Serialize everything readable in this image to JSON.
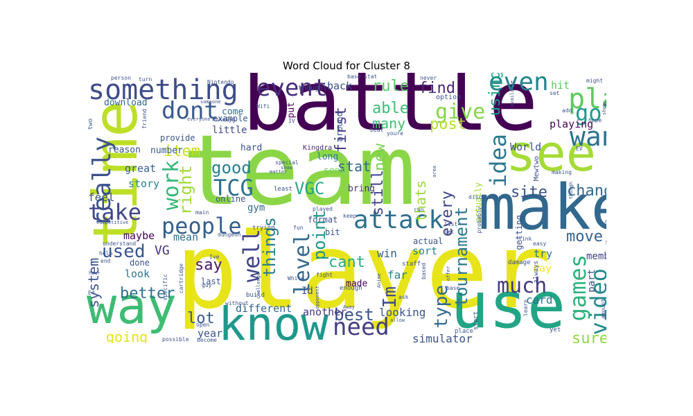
{
  "title": "Word Cloud for Cluster 8",
  "chart_data": {
    "type": "wordcloud",
    "title": "Word Cloud for Cluster 8",
    "words": [
      {
        "text": "player",
        "weight": 1.0,
        "color": "#e7e419"
      },
      {
        "text": "team",
        "weight": 0.95,
        "color": "#8bd646"
      },
      {
        "text": "battle",
        "weight": 0.92,
        "color": "#440154"
      },
      {
        "text": "time",
        "weight": 0.62,
        "color": "#bddf26"
      },
      {
        "text": "make",
        "weight": 0.6,
        "color": "#31688e"
      },
      {
        "text": "use",
        "weight": 0.58,
        "color": "#21a585"
      },
      {
        "text": "know",
        "weight": 0.5,
        "color": "#1f988b"
      },
      {
        "text": "way",
        "weight": 0.48,
        "color": "#3ebc73"
      },
      {
        "text": "see",
        "weight": 0.46,
        "color": "#a5db36"
      },
      {
        "text": "attack",
        "weight": 0.3,
        "color": "#2e6e8e"
      },
      {
        "text": "something",
        "weight": 0.3,
        "color": "#3e4c8a"
      },
      {
        "text": "play",
        "weight": 0.28,
        "color": "#5ec962"
      },
      {
        "text": "want",
        "weight": 0.26,
        "color": "#2c728e"
      },
      {
        "text": "people",
        "weight": 0.24,
        "color": "#355f8d"
      },
      {
        "text": "event",
        "weight": 0.22,
        "color": "#472d7b"
      },
      {
        "text": "even",
        "weight": 0.22,
        "color": "#25858e"
      },
      {
        "text": "need",
        "weight": 0.21,
        "color": "#433e85"
      },
      {
        "text": "dont",
        "weight": 0.21,
        "color": "#38588c"
      },
      {
        "text": "really",
        "weight": 0.2,
        "color": "#3b528b"
      },
      {
        "text": "take",
        "weight": 0.2,
        "color": "#404688"
      },
      {
        "text": "idea",
        "weight": 0.2,
        "color": "#2a788e"
      },
      {
        "text": "well",
        "weight": 0.2,
        "color": "#414487"
      },
      {
        "text": "level",
        "weight": 0.2,
        "color": "#31688e"
      },
      {
        "text": "games",
        "weight": 0.19,
        "color": "#2db27d"
      },
      {
        "text": "video",
        "weight": 0.19,
        "color": "#23898e"
      },
      {
        "text": "much",
        "weight": 0.18,
        "color": "#453781"
      },
      {
        "text": "give",
        "weight": 0.18,
        "color": "#86d549"
      },
      {
        "text": "TCG",
        "weight": 0.18,
        "color": "#2c728e"
      },
      {
        "text": "go",
        "weight": 0.18,
        "color": "#1e9b8a"
      },
      {
        "text": "work",
        "weight": 0.17,
        "color": "#35b779"
      },
      {
        "text": "Im",
        "weight": 0.17,
        "color": "#3e4a89"
      },
      {
        "text": "used",
        "weight": 0.16,
        "color": "#39568c"
      },
      {
        "text": "good",
        "weight": 0.15,
        "color": "#277f8e"
      },
      {
        "text": "VGC",
        "weight": 0.15,
        "color": "#22a884"
      },
      {
        "text": "best",
        "weight": 0.14,
        "color": "#3b528b"
      },
      {
        "text": "rule",
        "weight": 0.13,
        "color": "#58c765"
      },
      {
        "text": "find",
        "weight": 0.13,
        "color": "#482576"
      },
      {
        "text": "site",
        "weight": 0.13,
        "color": "#3b528b"
      },
      {
        "text": "right",
        "weight": 0.13,
        "color": "#a0da39"
      },
      {
        "text": "type",
        "weight": 0.13,
        "color": "#31688e"
      },
      {
        "text": "things",
        "weight": 0.13,
        "color": "#287d8e"
      },
      {
        "text": "point",
        "weight": 0.13,
        "color": "#1f968b"
      },
      {
        "text": "tournament",
        "weight": 0.13,
        "color": "#2a778e"
      },
      {
        "text": "thats",
        "weight": 0.12,
        "color": "#9dd93b"
      },
      {
        "text": "new",
        "weight": 0.12,
        "color": "#7ad151"
      },
      {
        "text": "still",
        "weight": 0.12,
        "color": "#404588"
      },
      {
        "text": "first",
        "weight": 0.12,
        "color": "#443983"
      },
      {
        "text": "using",
        "weight": 0.12,
        "color": "#1f9e89"
      },
      {
        "text": "move",
        "weight": 0.12,
        "color": "#34618d"
      },
      {
        "text": "change",
        "weight": 0.12,
        "color": "#31688e"
      },
      {
        "text": "able",
        "weight": 0.12,
        "color": "#3dbc74"
      },
      {
        "text": "post",
        "weight": 0.12,
        "color": "#b2dd2d"
      },
      {
        "text": "many",
        "weight": 0.12,
        "color": "#44bf70"
      },
      {
        "text": "stat",
        "weight": 0.12,
        "color": "#33638d"
      },
      {
        "text": "every",
        "weight": 0.12,
        "color": "#404588"
      },
      {
        "text": "system",
        "weight": 0.11,
        "color": "#3a548c"
      },
      {
        "text": "better",
        "weight": 0.11,
        "color": "#2e6f8e"
      },
      {
        "text": "item",
        "weight": 0.11,
        "color": "#c8e020"
      },
      {
        "text": "cant",
        "weight": 0.11,
        "color": "#27ad81"
      },
      {
        "text": "say",
        "weight": 0.11,
        "color": "#481769"
      },
      {
        "text": "lot",
        "weight": 0.11,
        "color": "#38588c"
      },
      {
        "text": "going",
        "weight": 0.1,
        "color": "#e2e418"
      },
      {
        "text": "sure",
        "weight": 0.1,
        "color": "#8fd744"
      },
      {
        "text": "simulator",
        "weight": 0.09,
        "color": "#3b528b"
      },
      {
        "text": "looking",
        "weight": 0.09,
        "color": "#3b528b"
      },
      {
        "text": "card",
        "weight": 0.09,
        "color": "#2b748e"
      },
      {
        "text": "back",
        "weight": 0.08,
        "color": "#3b528b"
      },
      {
        "text": "VG",
        "weight": 0.08,
        "color": "#46307e"
      },
      {
        "text": "maybe",
        "weight": 0.08,
        "color": "#440154"
      },
      {
        "text": "look",
        "weight": 0.08,
        "color": "#2d708e"
      },
      {
        "text": "great",
        "weight": 0.08,
        "color": "#355f8d"
      },
      {
        "text": "story",
        "weight": 0.08,
        "color": "#25848e"
      },
      {
        "text": "feel",
        "weight": 0.08,
        "color": "#3b528b"
      },
      {
        "text": "mean",
        "weight": 0.08,
        "color": "#2e6e8e"
      },
      {
        "text": "year",
        "weight": 0.08,
        "color": "#3b528b"
      },
      {
        "text": "different",
        "weight": 0.08,
        "color": "#32648e"
      },
      {
        "text": "another",
        "weight": 0.08,
        "color": "#443983"
      },
      {
        "text": "win",
        "weight": 0.08,
        "color": "#32648e"
      },
      {
        "text": "far",
        "weight": 0.08,
        "color": "#27808e"
      },
      {
        "text": "made",
        "weight": 0.08,
        "color": "#440154"
      },
      {
        "text": "sort",
        "weight": 0.08,
        "color": "#26828e"
      },
      {
        "text": "hard",
        "weight": 0.08,
        "color": "#3b528b"
      },
      {
        "text": "long",
        "weight": 0.08,
        "color": "#287c8e"
      },
      {
        "text": "seem",
        "weight": 0.08,
        "color": "#70cf57"
      },
      {
        "text": "bring",
        "weight": 0.08,
        "color": "#46327e"
      },
      {
        "text": "little",
        "weight": 0.08,
        "color": "#3f4788"
      },
      {
        "text": "gym",
        "weight": 0.08,
        "color": "#2f6b8e"
      },
      {
        "text": "try",
        "weight": 0.08,
        "color": "#2e6f8e"
      },
      {
        "text": "day",
        "weight": 0.08,
        "color": "#fde725"
      },
      {
        "text": "member",
        "weight": 0.08,
        "color": "#414487"
      },
      {
        "text": "part",
        "weight": 0.08,
        "color": "#3b528b"
      },
      {
        "text": "playing",
        "weight": 0.08,
        "color": "#440154"
      },
      {
        "text": "World",
        "weight": 0.08,
        "color": "#3b528b"
      },
      {
        "text": "hit",
        "weight": 0.08,
        "color": "#5ec962"
      },
      {
        "text": "download",
        "weight": 0.07,
        "color": "#31688e"
      },
      {
        "text": "come",
        "weight": 0.07,
        "color": "#31688e"
      },
      {
        "text": "reason",
        "weight": 0.07,
        "color": "#3b528b"
      },
      {
        "text": "number",
        "weight": 0.07,
        "color": "#38588c"
      },
      {
        "text": "provide",
        "weight": 0.07,
        "color": "#3b528b"
      },
      {
        "text": "example",
        "weight": 0.07,
        "color": "#3b528b"
      },
      {
        "text": "actually",
        "weight": 0.07,
        "color": "#a0da39"
      },
      {
        "text": "getting",
        "weight": 0.07,
        "color": "#3b528b"
      },
      {
        "text": "already",
        "weight": 0.07,
        "color": "#482878"
      },
      {
        "text": "Id",
        "weight": 0.07,
        "color": "#3b528b"
      },
      {
        "text": "around",
        "weight": 0.07,
        "color": "#3b528b"
      },
      {
        "text": "put",
        "weight": 0.07,
        "color": "#440154"
      },
      {
        "text": "last",
        "weight": 0.07,
        "color": "#3b528b"
      },
      {
        "text": "done",
        "weight": 0.07,
        "color": "#3b528b"
      },
      {
        "text": "online",
        "weight": 0.07,
        "color": "#3b528b"
      },
      {
        "text": "actual",
        "weight": 0.07,
        "color": "#3b528b"
      },
      {
        "text": "format",
        "weight": 0.07,
        "color": "#3b528b"
      },
      {
        "text": "bit",
        "weight": 0.07,
        "color": "#3b528b"
      },
      {
        "text": "community",
        "weight": 0.07,
        "color": "#3b528b"
      },
      {
        "text": "Kingdra",
        "weight": 0.06,
        "color": "#482878"
      },
      {
        "text": "Mewtwo",
        "weight": 0.06,
        "color": "#3b528b"
      },
      {
        "text": "thought",
        "weight": 0.06,
        "color": "#3b528b"
      },
      {
        "text": "option",
        "weight": 0.06,
        "color": "#3b528b"
      },
      {
        "text": "main",
        "weight": 0.05,
        "color": "#3b528b"
      },
      {
        "text": "understand",
        "weight": 0.05,
        "color": "#3b528b"
      },
      {
        "text": "cartridge",
        "weight": 0.05,
        "color": "#3b528b"
      },
      {
        "text": "E4",
        "weight": 0.05,
        "color": "#3b528b"
      },
      {
        "text": "Elite",
        "weight": 0.05,
        "color": "#3b528b"
      },
      {
        "text": "got",
        "weight": 0.05,
        "color": "#3b528b"
      },
      {
        "text": "said",
        "weight": 0.05,
        "color": "#3b528b"
      },
      {
        "text": "damage",
        "weight": 0.05,
        "color": "#3b528b"
      },
      {
        "text": "always",
        "weight": 0.05,
        "color": "#3b528b"
      },
      {
        "text": "staff",
        "weight": 0.05,
        "color": "#3b528b"
      },
      {
        "text": "enough",
        "weight": 0.05,
        "color": "#3b528b"
      },
      {
        "text": "learn",
        "weight": 0.05,
        "color": "#3b528b"
      },
      {
        "text": "yet",
        "weight": 0.05,
        "color": "#3b528b"
      },
      {
        "text": "start",
        "weight": 0.05,
        "color": "#3b528b"
      },
      {
        "text": "place",
        "weight": 0.05,
        "color": "#3b528b"
      },
      {
        "text": "Nintendo",
        "weight": 0.05,
        "color": "#3b528b"
      },
      {
        "text": "PokeGym",
        "weight": 0.05,
        "color": "#3b528b"
      },
      {
        "text": "person",
        "weight": 0.05,
        "color": "#3b528b"
      },
      {
        "text": "turn",
        "weight": 0.05,
        "color": "#3b528b"
      },
      {
        "text": "someone",
        "weight": 0.05,
        "color": "#3b528b"
      },
      {
        "text": "everyone",
        "weight": 0.05,
        "color": "#3b528b"
      },
      {
        "text": "special",
        "weight": 0.05,
        "color": "#3b528b"
      },
      {
        "text": "show",
        "weight": 0.05,
        "color": "#3b528b"
      },
      {
        "text": "least",
        "weight": 0.05,
        "color": "#3b528b"
      },
      {
        "text": "dungeon",
        "weight": 0.05,
        "color": "#3b528b"
      },
      {
        "text": "trying",
        "weight": 0.05,
        "color": "#3b528b"
      },
      {
        "text": "Ive",
        "weight": 0.05,
        "color": "#3b528b"
      },
      {
        "text": "guy",
        "weight": 0.05,
        "color": "#3b528b"
      },
      {
        "text": "build",
        "weight": 0.05,
        "color": "#3b528b"
      },
      {
        "text": "without",
        "weight": 0.05,
        "color": "#3b528b"
      },
      {
        "text": "possible",
        "weight": 0.05,
        "color": "#3b528b"
      },
      {
        "text": "become",
        "weight": 0.05,
        "color": "#3b528b"
      },
      {
        "text": "open",
        "weight": 0.05,
        "color": "#3b528b"
      },
      {
        "text": "help",
        "weight": 0.05,
        "color": "#3b528b"
      },
      {
        "text": "end",
        "weight": 0.05,
        "color": "#3b528b"
      },
      {
        "text": "hour",
        "weight": 0.05,
        "color": "#3b528b"
      },
      {
        "text": "two",
        "weight": 0.05,
        "color": "#3b528b"
      },
      {
        "text": "competitive",
        "weight": 0.05,
        "color": "#3b528b"
      },
      {
        "text": "specific",
        "weight": 0.05,
        "color": "#3b528b"
      },
      {
        "text": "fight",
        "weight": 0.05,
        "color": "#3b528b"
      },
      {
        "text": "White",
        "weight": 0.05,
        "color": "#3b528b"
      },
      {
        "text": "challenge",
        "weight": 0.05,
        "color": "#3b528b"
      },
      {
        "text": "opponent",
        "weight": 0.05,
        "color": "#3b528b"
      },
      {
        "text": "Anime",
        "weight": 0.05,
        "color": "#3b528b"
      },
      {
        "text": "Away",
        "weight": 0.05,
        "color": "#3b528b"
      },
      {
        "text": "ask",
        "weight": 0.05,
        "color": "#3b528b"
      },
      {
        "text": "allow",
        "weight": 0.05,
        "color": "#3b528b"
      },
      {
        "text": "based",
        "weight": 0.05,
        "color": "#3b528b"
      },
      {
        "text": "offer",
        "weight": 0.05,
        "color": "#3b528b"
      },
      {
        "text": "base",
        "weight": 0.05,
        "color": "#3b528b"
      },
      {
        "text": "run",
        "weight": 0.05,
        "color": "#3b528b"
      },
      {
        "text": "beat",
        "weight": 0.05,
        "color": "#3b528b"
      },
      {
        "text": "youre",
        "weight": 0.05,
        "color": "#3b528b"
      },
      {
        "text": "list",
        "weight": 0.05,
        "color": "#3b528b"
      },
      {
        "text": "let",
        "weight": 0.05,
        "color": "#3b528b"
      },
      {
        "text": "probably",
        "weight": 0.05,
        "color": "#3b528b"
      },
      {
        "text": "discussion",
        "weight": 0.05,
        "color": "#3b528b"
      },
      {
        "text": "area",
        "weight": 0.05,
        "color": "#3b528b"
      },
      {
        "text": "played",
        "weight": 0.05,
        "color": "#3b528b"
      },
      {
        "text": "keep",
        "weight": 0.05,
        "color": "#3b528b"
      },
      {
        "text": "fun",
        "weight": 0.05,
        "color": "#3b528b"
      },
      {
        "text": "Wifi",
        "weight": 0.05,
        "color": "#3b528b"
      },
      {
        "text": "matter",
        "weight": 0.05,
        "color": "#3b528b"
      },
      {
        "text": "IV",
        "weight": 0.05,
        "color": "#3b528b"
      },
      {
        "text": "set",
        "weight": 0.05,
        "color": "#3b528b"
      },
      {
        "text": "available",
        "weight": 0.05,
        "color": "#3b528b"
      },
      {
        "text": "never",
        "weight": 0.05,
        "color": "#3b528b"
      },
      {
        "text": "base stat",
        "weight": 0.05,
        "color": "#3b528b"
      },
      {
        "text": "add",
        "weight": 0.05,
        "color": "#3b528b"
      },
      {
        "text": "making",
        "weight": 0.05,
        "color": "#3b528b"
      },
      {
        "text": "though",
        "weight": 0.05,
        "color": "#3b528b"
      },
      {
        "text": "might",
        "weight": 0.05,
        "color": "#3b528b"
      },
      {
        "text": "hope",
        "weight": 0.05,
        "color": "#3b528b"
      },
      {
        "text": "shop",
        "weight": 0.05,
        "color": "#3b528b"
      },
      {
        "text": "easy",
        "weight": 0.05,
        "color": "#3b528b"
      },
      {
        "text": "link",
        "weight": 0.05,
        "color": "#3b528b"
      },
      {
        "text": "u",
        "weight": 0.05,
        "color": "#3b528b"
      },
      {
        "text": "EV",
        "weight": 0.05,
        "color": "#3b528b"
      },
      {
        "text": "amount",
        "weight": 0.05,
        "color": "#3b528b"
      },
      {
        "text": "friend",
        "weight": 0.05,
        "color": "#3b528b"
      }
    ]
  }
}
